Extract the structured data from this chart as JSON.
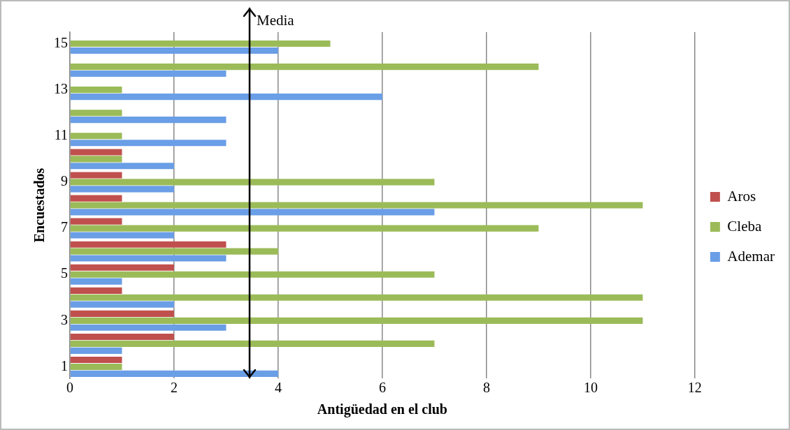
{
  "chart_data": {
    "type": "bar",
    "orientation": "horizontal",
    "xlabel": "Antigüedad en el club",
    "ylabel": "Encuestados",
    "categories": [
      "15",
      null,
      "13",
      null,
      "11",
      null,
      "9",
      null,
      "7",
      null,
      "5",
      null,
      "3",
      null,
      "1"
    ],
    "series": [
      {
        "name": "Aros",
        "color": "#c0504d",
        "values": [
          null,
          null,
          null,
          null,
          null,
          1,
          1,
          1,
          1,
          3,
          2,
          1,
          2,
          2,
          1
        ]
      },
      {
        "name": "Cleba",
        "color": "#9bbb59",
        "values": [
          5,
          9,
          1,
          1,
          1,
          1,
          7,
          11,
          9,
          4,
          7,
          11,
          11,
          7,
          1
        ]
      },
      {
        "name": "Ademar",
        "color": "#6a9ee6",
        "values": [
          4,
          3,
          6,
          3,
          3,
          2,
          2,
          7,
          2,
          3,
          1,
          2,
          3,
          1,
          4
        ]
      }
    ],
    "xlim": [
      0,
      12
    ],
    "xticks": [
      0,
      2,
      4,
      6,
      8,
      10,
      12
    ],
    "grid": "x",
    "legend": "right",
    "ref_lines": [
      {
        "axis": "x",
        "value": 3.45,
        "label": "Media"
      }
    ]
  }
}
